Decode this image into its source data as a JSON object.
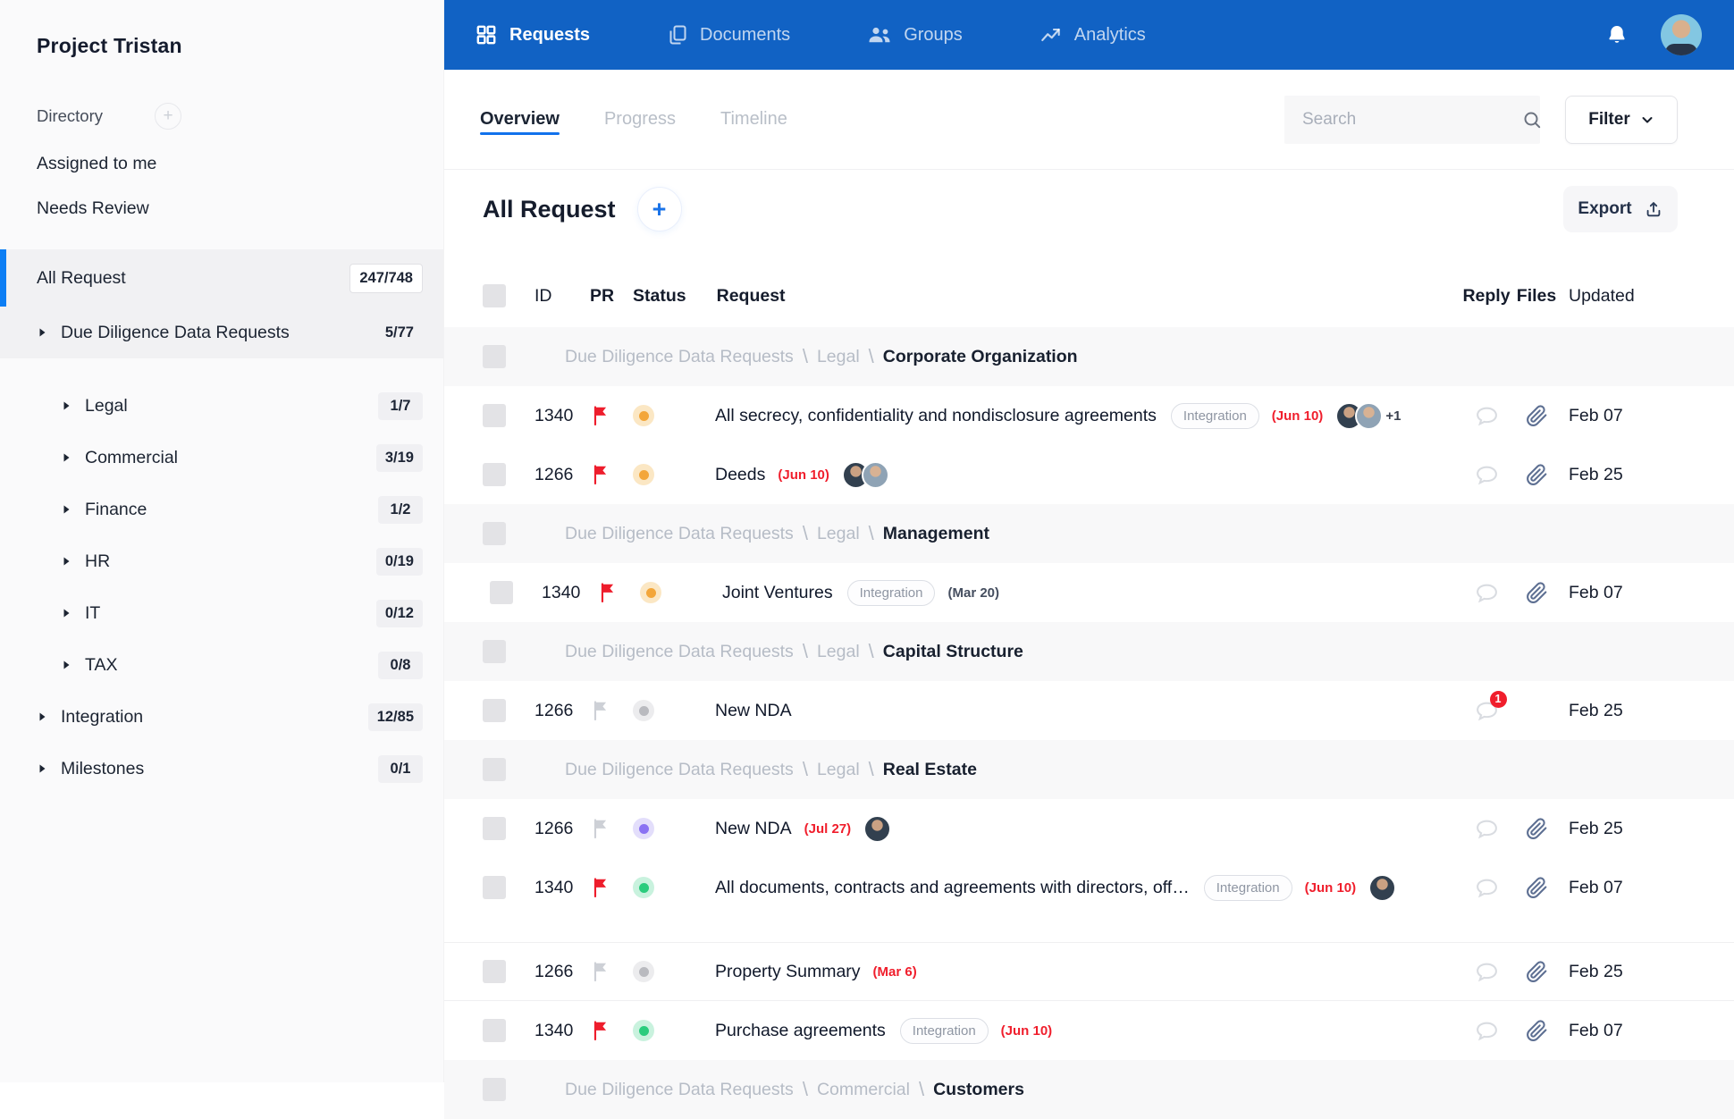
{
  "sidebar": {
    "project_title": "Project Tristan",
    "directory_label": "Directory",
    "items": [
      {
        "label": "Assigned to me",
        "type": "plain"
      },
      {
        "label": "Needs Review",
        "type": "plain"
      },
      {
        "label": "All Request",
        "count": "247/748",
        "type": "selected"
      },
      {
        "label": "Due Diligence Data Requests",
        "count": "5/77",
        "type": "expandable",
        "level": 0,
        "highlighted": true
      },
      {
        "label": "Legal",
        "count": "1/7",
        "type": "expandable",
        "level": 1
      },
      {
        "label": "Commercial",
        "count": "3/19",
        "type": "expandable",
        "level": 1
      },
      {
        "label": "Finance",
        "count": "1/2",
        "type": "expandable",
        "level": 1
      },
      {
        "label": "HR",
        "count": "0/19",
        "type": "expandable",
        "level": 1
      },
      {
        "label": "IT",
        "count": "0/12",
        "type": "expandable",
        "level": 1
      },
      {
        "label": "TAX",
        "count": "0/8",
        "type": "expandable",
        "level": 1
      },
      {
        "label": "Integration",
        "count": "12/85",
        "type": "expandable",
        "level": 0
      },
      {
        "label": "Milestones",
        "count": "0/1",
        "type": "expandable",
        "level": 0
      }
    ]
  },
  "topnav": {
    "items": [
      {
        "label": "Requests",
        "icon": "grid-icon",
        "active": true
      },
      {
        "label": "Documents",
        "icon": "documents-icon",
        "active": false
      },
      {
        "label": "Groups",
        "icon": "groups-icon",
        "active": false
      },
      {
        "label": "Analytics",
        "icon": "analytics-icon",
        "active": false
      }
    ]
  },
  "toolbar": {
    "tabs": [
      {
        "label": "Overview",
        "active": true
      },
      {
        "label": "Progress",
        "active": false
      },
      {
        "label": "Timeline",
        "active": false
      }
    ],
    "search_placeholder": "Search",
    "filter_label": "Filter"
  },
  "content": {
    "heading": "All Request",
    "add_label": "+",
    "export_label": "Export",
    "columns": {
      "id": "ID",
      "pr": "PR",
      "status": "Status",
      "request": "Request",
      "reply": "Reply",
      "files": "Files",
      "updated": "Updated"
    },
    "rows": [
      {
        "type": "group",
        "breadcrumb": [
          "Due Diligence Data Requests",
          "Legal"
        ],
        "name": "Corporate Organization"
      },
      {
        "type": "item",
        "id": "1340",
        "flag": "red",
        "status": "orange",
        "title": "All secrecy, confidentiality and nondisclosure agreements",
        "tag": "Integration",
        "due": "(Jun 10)",
        "due_color": "red",
        "avatars": 2,
        "extra": "+1",
        "reply": true,
        "files": true,
        "updated": "Feb 07"
      },
      {
        "type": "item",
        "id": "1266",
        "flag": "red",
        "status": "orange",
        "title": "Deeds",
        "due": "(Jun 10)",
        "due_color": "red",
        "avatars": 2,
        "reply": true,
        "files": true,
        "updated": "Feb 25"
      },
      {
        "type": "group",
        "breadcrumb": [
          "Due Diligence Data Requests",
          "Legal"
        ],
        "name": "Management"
      },
      {
        "type": "item",
        "id": "1340",
        "flag": "red",
        "status": "orange",
        "indent": true,
        "title": "Joint Ventures",
        "tag": "Integration",
        "due": "(Mar 20)",
        "due_color": "dark",
        "reply": true,
        "files": true,
        "updated": "Feb 07"
      },
      {
        "type": "group",
        "breadcrumb": [
          "Due Diligence Data Requests",
          "Legal"
        ],
        "name": "Capital Structure"
      },
      {
        "type": "item",
        "id": "1266",
        "flag": "gray",
        "status": "gray",
        "title": "New NDA",
        "reply": true,
        "badge": "1",
        "files": false,
        "updated": "Feb 25"
      },
      {
        "type": "group",
        "breadcrumb": [
          "Due Diligence Data Requests",
          "Legal"
        ],
        "name": "Real Estate"
      },
      {
        "type": "item",
        "id": "1266",
        "flag": "gray",
        "status": "purple",
        "title": "New NDA",
        "due": "(Jul 27)",
        "due_color": "red",
        "avatars": 1,
        "reply": true,
        "files": true,
        "updated": "Feb 25"
      },
      {
        "type": "item",
        "id": "1340",
        "flag": "red",
        "status": "green",
        "title": "All documents, contracts and agreements with directors, off…",
        "tag": "Integration",
        "due": "(Jun 10)",
        "due_color": "red",
        "avatars": 1,
        "reply": true,
        "files": true,
        "updated": "Feb 07"
      },
      {
        "type": "item",
        "id": "1266",
        "flag": "gray",
        "status": "gray",
        "gap_top": true,
        "divider_top": true,
        "divider_bottom": true,
        "title": "Property Summary",
        "due": "(Mar 6)",
        "due_color": "red",
        "reply": true,
        "files": true,
        "updated": "Feb 25"
      },
      {
        "type": "item",
        "id": "1340",
        "flag": "red",
        "status": "green",
        "title": "Purchase agreements",
        "tag": "Integration",
        "due": "(Jun 10)",
        "due_color": "red",
        "reply": true,
        "files": true,
        "updated": "Feb 07"
      },
      {
        "type": "group",
        "breadcrumb": [
          "Due Diligence Data Requests",
          "Commercial"
        ],
        "name": "Customers",
        "partial": true
      }
    ]
  },
  "colors": {
    "brand_blue": "#1162c4",
    "accent_blue": "#1272ec",
    "selection_blue": "#0d7ef4",
    "alert_red": "#f01e2c",
    "status_orange": "#f3a63a",
    "status_gray": "#b9babf",
    "status_purple": "#8a72f3",
    "status_green": "#2bcc7d"
  }
}
